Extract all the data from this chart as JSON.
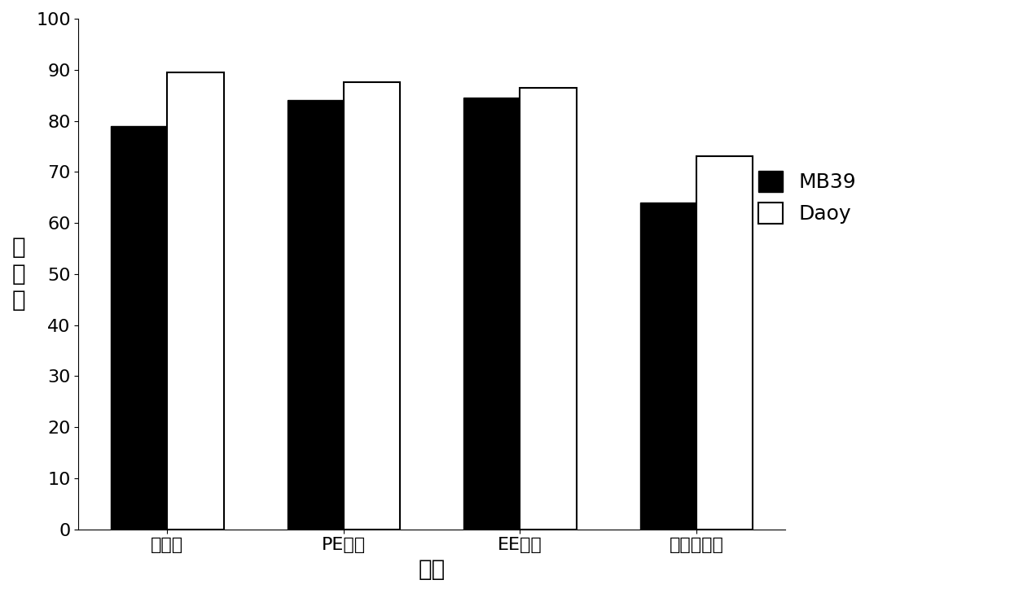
{
  "categories": [
    "醇提物",
    "PE部分",
    "EE部分",
    "正丁醇部分"
  ],
  "mb39_values": [
    79,
    84,
    84.5,
    64
  ],
  "daoy_values": [
    89.5,
    87.5,
    86.5,
    73
  ],
  "mb39_color": "#000000",
  "daoy_color": "#ffffff",
  "daoy_edgecolor": "#000000",
  "ylabel_chars": [
    "抑",
    "制",
    "率"
  ],
  "xlabel": "组分",
  "ylim": [
    0,
    100
  ],
  "yticks": [
    0,
    10,
    20,
    30,
    40,
    50,
    60,
    70,
    80,
    90,
    100
  ],
  "legend_mb39": "MB39",
  "legend_daoy": "Daoy",
  "bar_width": 0.32,
  "background_color": "#ffffff",
  "ylabel_fontsize": 20,
  "xlabel_fontsize": 20,
  "tick_fontsize": 16,
  "legend_fontsize": 18
}
